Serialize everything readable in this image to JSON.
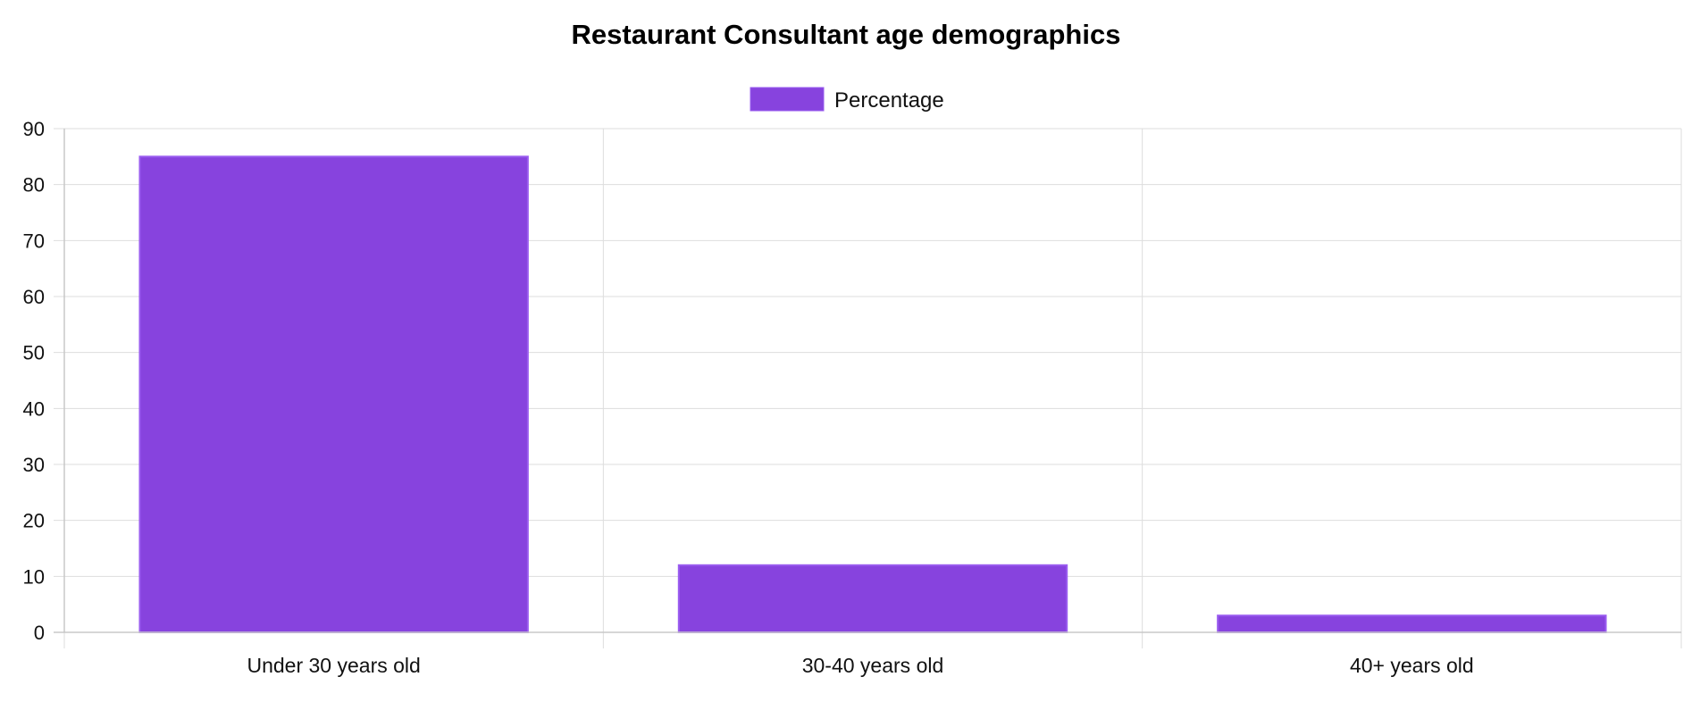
{
  "chart_data": {
    "type": "bar",
    "title": "Restaurant Consultant age demographics",
    "categories": [
      "Under 30 years old",
      "30-40 years old",
      "40+ years old"
    ],
    "series": [
      {
        "name": "Percentage",
        "values": [
          85,
          12,
          3
        ],
        "color": "#8743DE"
      }
    ],
    "xlabel": "",
    "ylabel": "",
    "ylim": [
      0,
      90
    ],
    "yticks": [
      "0",
      "10",
      "20",
      "30",
      "40",
      "50",
      "60",
      "70",
      "80",
      "90"
    ],
    "grid": true,
    "legend_position": "top-center"
  }
}
